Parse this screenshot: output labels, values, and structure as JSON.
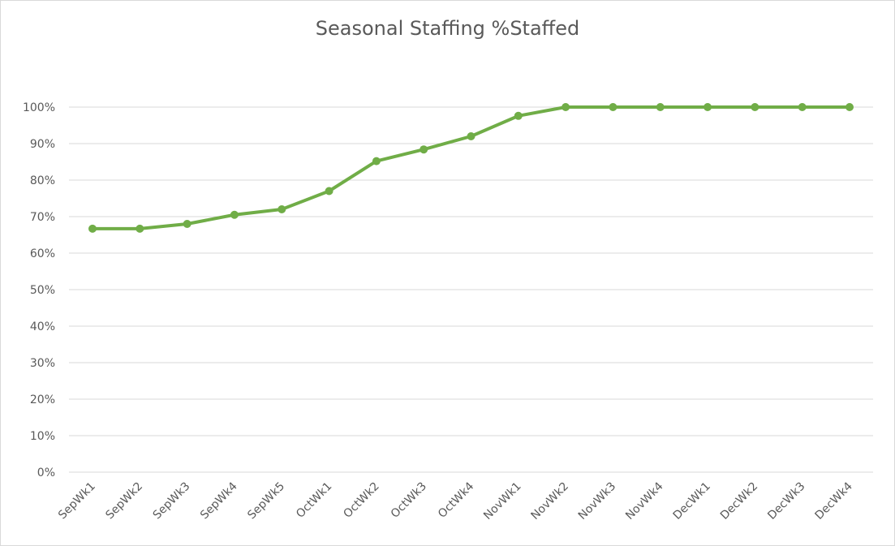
{
  "chart_data": {
    "type": "line",
    "title": "Seasonal Staffing %Staffed",
    "xlabel": "",
    "ylabel": "",
    "categories": [
      "SepWk1",
      "SepWk2",
      "SepWk3",
      "SepWk4",
      "SepWk5",
      "OctWk1",
      "OctWk2",
      "OctWk3",
      "OctWk4",
      "NovWk1",
      "NovWk2",
      "NovWk3",
      "NovWk4",
      "DecWk1",
      "DecWk2",
      "DecWk3",
      "DecWk4"
    ],
    "series": [
      {
        "values": [
          0.667,
          0.667,
          0.68,
          0.705,
          0.72,
          0.77,
          0.852,
          0.884,
          0.92,
          0.976,
          1.0,
          1.0,
          1.0,
          1.0,
          1.0,
          1.0,
          1.0
        ]
      }
    ],
    "ylim": [
      0,
      1
    ],
    "yticks": [
      "0%",
      "10%",
      "20%",
      "30%",
      "40%",
      "50%",
      "60%",
      "70%",
      "80%",
      "90%",
      "100%"
    ],
    "grid": true,
    "legend": "none",
    "colors": {
      "line": "#70ad47",
      "grid": "#d9d9d9",
      "text": "#595959"
    }
  }
}
